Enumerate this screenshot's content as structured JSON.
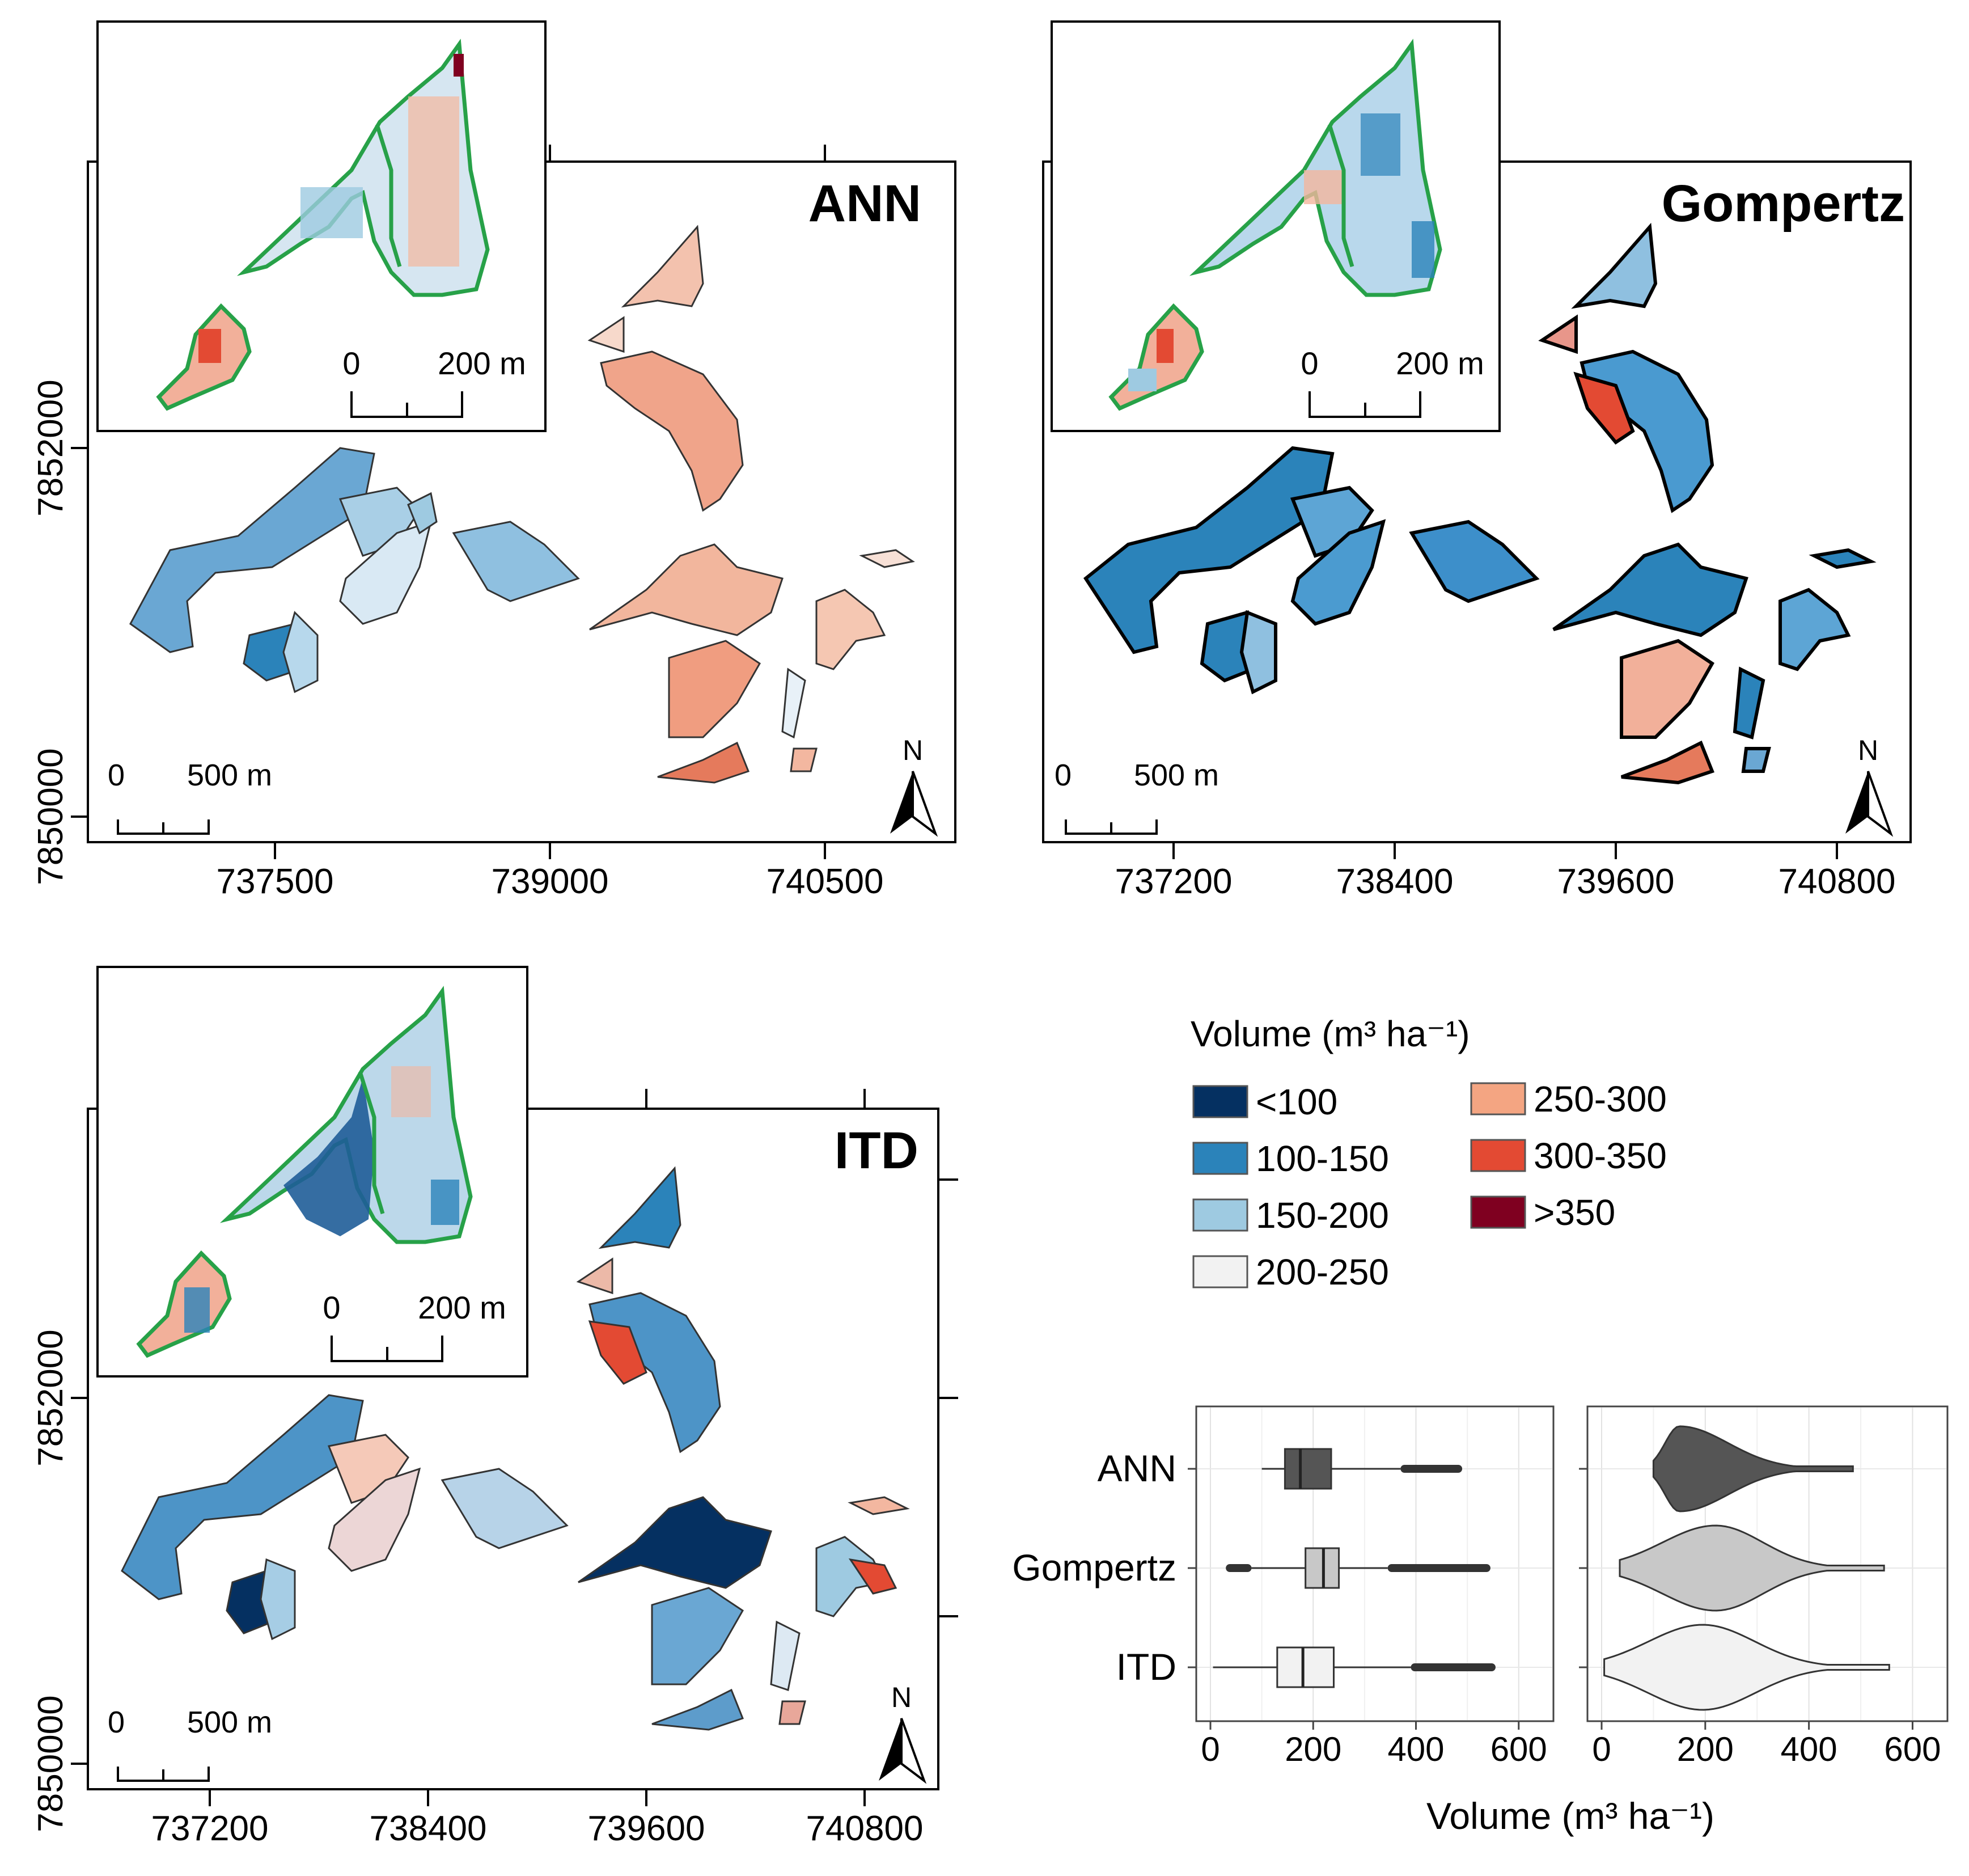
{
  "panels": [
    {
      "key": "ann",
      "title": "ANN",
      "y_ticks": [
        "7852000",
        "7850000"
      ],
      "x_ticks": [
        "737500",
        "739000",
        "740500"
      ],
      "inset_scale": {
        "zero": "0",
        "distance": "200 m"
      },
      "main_scale": {
        "zero": "0",
        "distance": "500 m"
      },
      "north": "N"
    },
    {
      "key": "gompertz",
      "title": "Gompertz",
      "y_ticks": [],
      "x_ticks": [
        "737200",
        "738400",
        "739600",
        "740800"
      ],
      "inset_scale": {
        "zero": "0",
        "distance": "200 m"
      },
      "main_scale": {
        "zero": "0",
        "distance": "500 m"
      },
      "north": "N"
    },
    {
      "key": "itd",
      "title": "ITD",
      "y_ticks": [
        "7852000",
        "7850000"
      ],
      "x_ticks": [
        "737200",
        "738400",
        "739600",
        "740800"
      ],
      "inset_scale": {
        "zero": "0",
        "distance": "200 m"
      },
      "main_scale": {
        "zero": "0",
        "distance": "500 m"
      },
      "north": "N"
    }
  ],
  "legend": {
    "title": "Volume (m³ ha⁻¹)",
    "classes": [
      {
        "label": "<100",
        "color": "#053061"
      },
      {
        "label": "100-150",
        "color": "#2b83ba"
      },
      {
        "label": "150-200",
        "color": "#9ecae1"
      },
      {
        "label": "200-250",
        "color": "#f2f2f2"
      },
      {
        "label": "250-300",
        "color": "#f4a582"
      },
      {
        "label": "300-350",
        "color": "#e34a33"
      },
      {
        "label": ">350",
        "color": "#7f0020"
      }
    ]
  },
  "chart_data": [
    {
      "type": "boxplot",
      "categories": [
        "ANN",
        "Gompertz",
        "ITD"
      ],
      "series": [
        {
          "name": "ANN",
          "whisker_low": 100,
          "q1": 145,
          "median": 175,
          "q3": 235,
          "whisker_high": 370,
          "outliers_range": [
            370,
            490
          ],
          "color": "#555555"
        },
        {
          "name": "Gompertz",
          "whisker_low": 80,
          "q1": 185,
          "median": 220,
          "q3": 250,
          "whisker_high": 345,
          "outliers_range": [
            [
              30,
              80
            ],
            [
              345,
              545
            ]
          ],
          "color": "#c8c8c8"
        },
        {
          "name": "ITD",
          "whisker_low": 5,
          "q1": 130,
          "median": 180,
          "q3": 240,
          "whisker_high": 390,
          "outliers_range": [
            390,
            555
          ],
          "color": "#f2f2f2"
        }
      ],
      "xlim": [
        0,
        640
      ],
      "x_ticks": [
        "0",
        "200",
        "400",
        "600"
      ],
      "xlabel": ""
    },
    {
      "type": "violin",
      "categories": [
        "ANN",
        "Gompertz",
        "ITD"
      ],
      "series": [
        {
          "name": "ANN",
          "min": 100,
          "max": 485,
          "mode": 150,
          "color": "#555555"
        },
        {
          "name": "Gompertz",
          "min": 35,
          "max": 545,
          "mode": 220,
          "color": "#c8c8c8"
        },
        {
          "name": "ITD",
          "min": 5,
          "max": 555,
          "mode": 195,
          "color": "#f2f2f2"
        }
      ],
      "xlim": [
        0,
        640
      ],
      "x_ticks": [
        "0",
        "200",
        "400",
        "600"
      ],
      "xlabel": "Volume (m³ ha⁻¹)"
    }
  ]
}
